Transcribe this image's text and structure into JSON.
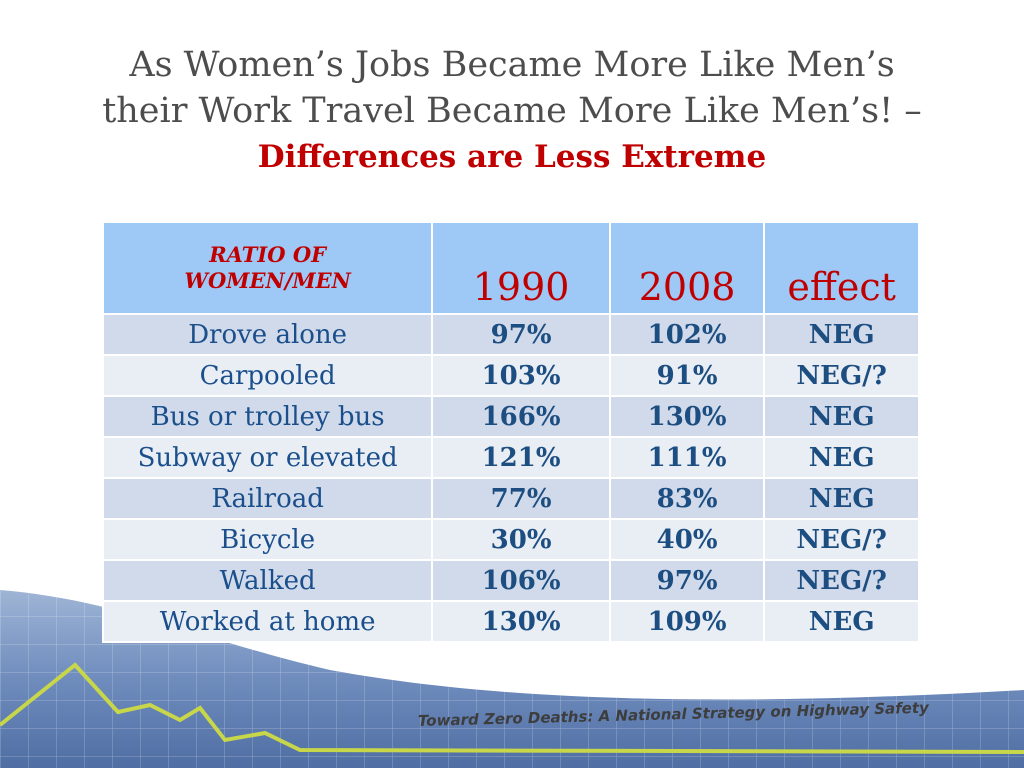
{
  "title": {
    "line1": "As Women’s Jobs Became More Like Men’s",
    "line2": "their Work Travel Became More Like Men’s! –",
    "line3": "Differences are Less Extreme"
  },
  "table": {
    "header": {
      "label_line1": "RATIO OF",
      "label_line2": "WOMEN/MEN",
      "col1": "1990",
      "col2": "2008",
      "col3": "effect"
    },
    "rows": [
      {
        "mode": "Drove alone",
        "y1990": "97%",
        "y2008": "102%",
        "effect": "NEG"
      },
      {
        "mode": "Carpooled",
        "y1990": "103%",
        "y2008": "91%",
        "effect": "NEG/?"
      },
      {
        "mode": "Bus or trolley bus",
        "y1990": "166%",
        "y2008": "130%",
        "effect": "NEG"
      },
      {
        "mode": "Subway or elevated",
        "y1990": "121%",
        "y2008": "111%",
        "effect": "NEG"
      },
      {
        "mode": "Railroad",
        "y1990": "77%",
        "y2008": "83%",
        "effect": "NEG"
      },
      {
        "mode": "Bicycle",
        "y1990": "30%",
        "y2008": "40%",
        "effect": "NEG/?"
      },
      {
        "mode": "Walked",
        "y1990": "106%",
        "y2008": "97%",
        "effect": "NEG/?"
      },
      {
        "mode": "Worked at home",
        "y1990": "130%",
        "y2008": "109%",
        "effect": "NEG"
      }
    ]
  },
  "footer": {
    "tagline": "Toward Zero Deaths: A National Strategy on Highway Safety"
  },
  "colors": {
    "title_gray": "#4d4d4d",
    "accent_red": "#c00000",
    "header_blue": "#9ec8f5",
    "value_blue": "#1d4e82",
    "road_blue": "#5f7fb0",
    "line_green": "#c8d64a"
  }
}
